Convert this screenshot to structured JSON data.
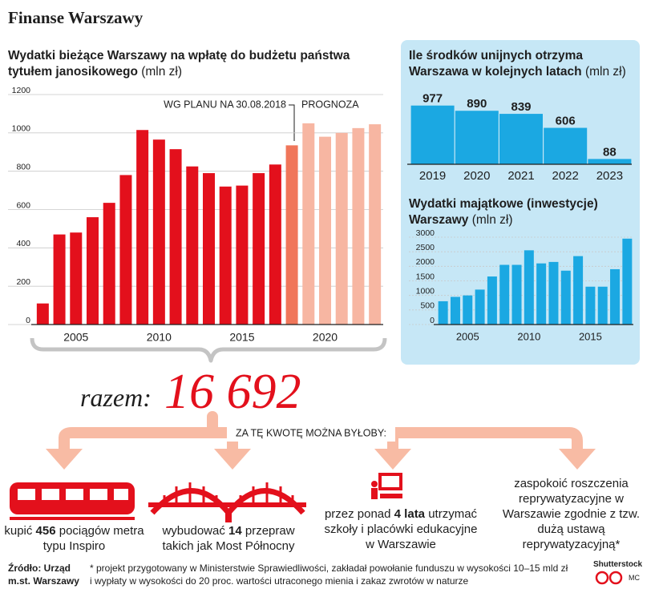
{
  "header": {
    "title": "Finanse Warszawy"
  },
  "chart_data": [
    {
      "type": "bar",
      "title": "Wydatki bieżące Warszawy na wpłatę do budżetu państwa tytułem janosikowego",
      "unit": "(mln zł)",
      "x": [
        2003,
        2004,
        2005,
        2006,
        2007,
        2008,
        2009,
        2010,
        2011,
        2012,
        2013,
        2014,
        2015,
        2016,
        2017,
        2018,
        2019,
        2020,
        2021,
        2022,
        2023
      ],
      "values": [
        110,
        470,
        480,
        560,
        635,
        780,
        1015,
        965,
        915,
        825,
        790,
        720,
        725,
        790,
        835,
        935,
        1050,
        980,
        1000,
        1025,
        1045
      ],
      "colors": [
        "#e3101c",
        "#e3101c",
        "#e3101c",
        "#e3101c",
        "#e3101c",
        "#e3101c",
        "#e3101c",
        "#e3101c",
        "#e3101c",
        "#e3101c",
        "#e3101c",
        "#e3101c",
        "#e3101c",
        "#e3101c",
        "#e3101c",
        "#f0765a",
        "#f7b6a2",
        "#f7b6a2",
        "#f7b6a2",
        "#f7b6a2",
        "#f7b6a2"
      ],
      "xlim": [
        2002.5,
        2023.5
      ],
      "xticks": [
        2005,
        2010,
        2015,
        2020
      ],
      "ylim": [
        0,
        1200
      ],
      "yticks": [
        0,
        200,
        400,
        600,
        800,
        1000,
        1200
      ],
      "grid": true,
      "annotations": [
        "WG PLANU NA 30.08.2018",
        "PROGNOZA"
      ]
    },
    {
      "type": "bar",
      "title": "Ile środków unijnych otrzyma Warszawa w kolejnych latach",
      "unit": "(mln zł)",
      "categories": [
        "2019",
        "2020",
        "2021",
        "2022",
        "2023"
      ],
      "values": [
        977,
        890,
        839,
        606,
        88
      ],
      "color": "#1ba8e2",
      "ylim": [
        0,
        1000
      ]
    },
    {
      "type": "bar",
      "title": "Wydatki majątkowe (inwestycje) Warszawy",
      "unit": "(mln zł)",
      "x": [
        2003,
        2004,
        2005,
        2006,
        2007,
        2008,
        2009,
        2010,
        2011,
        2012,
        2013,
        2014,
        2015,
        2016,
        2017,
        2018
      ],
      "values": [
        800,
        950,
        1000,
        1200,
        1650,
        2050,
        2050,
        2550,
        2100,
        2150,
        1850,
        2350,
        1300,
        1300,
        1900,
        2950
      ],
      "color": "#1ba8e2",
      "xlim": [
        2002.5,
        2018.5
      ],
      "xticks": [
        2005,
        2010,
        2015
      ],
      "ylim": [
        0,
        3000
      ],
      "yticks": [
        0,
        500,
        1000,
        1500,
        2000,
        2500,
        3000
      ],
      "grid": true
    }
  ],
  "summary": {
    "label": "razem:",
    "value": "16 692"
  },
  "uses": {
    "heading": "ZA TĘ KWOTĘ MOŻNA BYŁOBY:",
    "items": [
      {
        "parts": [
          "kupić ",
          "456",
          " pociągów metra typu Inspiro"
        ]
      },
      {
        "parts": [
          "wybudować ",
          "14",
          " przepraw takich jak Most Północny"
        ]
      },
      {
        "parts": [
          "przez ponad ",
          "4 lata",
          " utrzymać szkoły i placówki edukacyjne w Warszawie"
        ]
      },
      {
        "parts": [
          "zaspokoić roszczenia reprywatyzacyjne w Warszawie zgodnie z tzw. dużą ustawą reprywatyzacyjną*"
        ]
      }
    ]
  },
  "footer": {
    "source": "Źródło: Urząd m.st. Warszawy",
    "note": "* projekt przygotowany w Ministerstwie Sprawiedliwości, zakładał powołanie funduszu w wysokości 10–15 mld zł i wypłaty w wysokości do 20 proc. wartości utraconego mienia i zakaz zwrotów w naturze",
    "credit": "Shutterstock",
    "author": "MC"
  }
}
